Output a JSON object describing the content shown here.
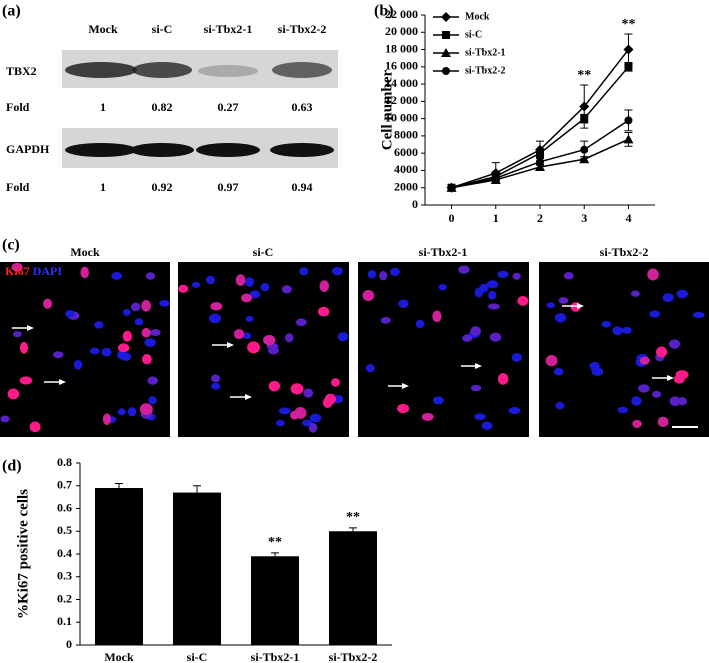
{
  "panel_labels": [
    "(a)",
    "(b)",
    "(c)",
    "(d)"
  ],
  "blot": {
    "columns": [
      "Mock",
      "si-C",
      "si-Tbx2-1",
      "si-Tbx2-2"
    ],
    "rows": [
      {
        "label": "TBX2",
        "fold_label": "Fold",
        "fold": [
          1,
          0.82,
          0.27,
          0.63
        ]
      },
      {
        "label": "GAPDH",
        "fold_label": "Fold",
        "fold": [
          1,
          0.92,
          0.97,
          0.94
        ]
      }
    ]
  },
  "microscopy": {
    "stain": [
      "Ki67",
      "DAPI"
    ],
    "titles": [
      "Mock",
      "si-C",
      "si-Tbx2-1",
      "si-Tbx2-2"
    ]
  },
  "chart_data": [
    {
      "type": "line",
      "ylabel": "Cell number",
      "x": [
        0,
        1,
        2,
        3,
        4
      ],
      "xlim": [
        -0.6,
        4.6
      ],
      "xticks": [
        0,
        1,
        2,
        3,
        4
      ],
      "ylim": [
        0,
        22000
      ],
      "yticks": [
        0,
        2000,
        4000,
        6000,
        8000,
        {
          "value": 10000,
          "label": "10 000"
        },
        {
          "value": 12000,
          "label": "12 000"
        },
        {
          "value": 14000,
          "label": "14 000"
        },
        {
          "value": 16000,
          "label": "16 000"
        },
        {
          "value": 18000,
          "label": "18 000"
        },
        {
          "value": 20000,
          "label": "20 000"
        },
        {
          "value": 22000,
          "label": "22 000"
        }
      ],
      "legend": "upper left",
      "series": [
        {
          "name": "Mock",
          "color": "#000000",
          "marker": "diamond",
          "values": [
            2000,
            3700,
            6400,
            11400,
            18000
          ],
          "errors": [
            0,
            1200,
            1000,
            2500,
            1800
          ]
        },
        {
          "name": "si-C",
          "color": "#000000",
          "marker": "square",
          "values": [
            2000,
            3300,
            6000,
            10000,
            16000
          ],
          "errors": [
            0,
            300,
            500,
            500,
            500
          ]
        },
        {
          "name": "si-Tbx2-1",
          "color": "#000000",
          "marker": "triangle",
          "values": [
            2000,
            2900,
            4400,
            5300,
            7600
          ],
          "errors": [
            0,
            200,
            300,
            300,
            800
          ]
        },
        {
          "name": "si-Tbx2-2",
          "color": "#000000",
          "marker": "circle",
          "values": [
            2000,
            3100,
            5000,
            6400,
            9800
          ],
          "errors": [
            0,
            300,
            400,
            1000,
            1200
          ]
        }
      ],
      "annotations": [
        {
          "text": "**",
          "x": 3
        },
        {
          "text": "**",
          "x": 4
        }
      ]
    },
    {
      "type": "bar",
      "ylabel": "%Ki67 positive cells",
      "categories": [
        "Mock",
        "si-C",
        "si-Tbx2-1",
        "si-Tbx2-2"
      ],
      "values": [
        0.69,
        0.67,
        0.39,
        0.5
      ],
      "errors": [
        0.02,
        0.03,
        0.015,
        0.015
      ],
      "color": "#000000",
      "ylim": [
        0,
        0.8
      ],
      "yticks": [
        0,
        0.1,
        0.2,
        0.3,
        0.4,
        0.5,
        0.6,
        0.7,
        0.8
      ],
      "annotations": [
        {
          "text": "**",
          "x": 2
        },
        {
          "text": "**",
          "x": 3
        }
      ]
    }
  ]
}
